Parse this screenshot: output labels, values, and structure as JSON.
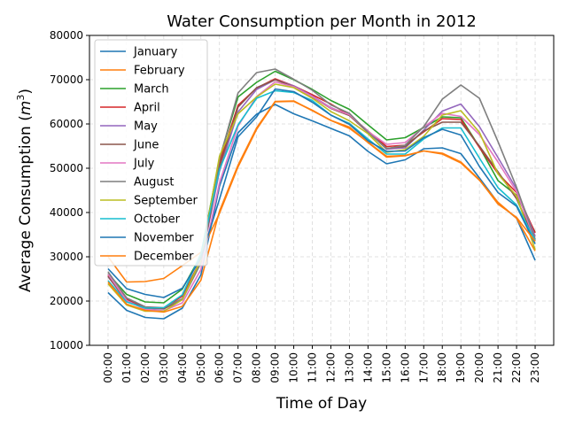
{
  "chart_data": {
    "type": "line",
    "title": "Water Consumption per Month in 2012",
    "xlabel": "Time of Day",
    "ylabel": "Average Consumption (m³)",
    "ylabel_base": "Average Consumption (",
    "ylabel_unit": "m",
    "ylabel_exp": "3",
    "ylabel_close": ")",
    "ylim": [
      10000,
      80000
    ],
    "yticks": [
      10000,
      20000,
      30000,
      40000,
      50000,
      60000,
      70000,
      80000
    ],
    "ytick_labels": [
      "10000",
      "20000",
      "30000",
      "40000",
      "50000",
      "60000",
      "70000",
      "80000"
    ],
    "grid": true,
    "legend_position": "upper-left",
    "x": [
      "00:00",
      "01:00",
      "02:00",
      "03:00",
      "04:00",
      "05:00",
      "06:00",
      "07:00",
      "08:00",
      "09:00",
      "10:00",
      "11:00",
      "12:00",
      "13:00",
      "14:00",
      "15:00",
      "16:00",
      "17:00",
      "18:00",
      "19:00",
      "20:00",
      "21:00",
      "22:00",
      "23:00"
    ],
    "series": [
      {
        "name": "January",
        "color": "#1f77b4",
        "values": [
          21900,
          17900,
          16300,
          16000,
          18400,
          25900,
          45900,
          58000,
          62200,
          64400,
          62300,
          60700,
          59000,
          57300,
          53800,
          51000,
          51900,
          54400,
          54600,
          53300,
          47800,
          42200,
          38700,
          29200
        ]
      },
      {
        "name": "February",
        "color": "#ff7f0e",
        "values": [
          30000,
          24300,
          24400,
          25100,
          28000,
          31000,
          39800,
          50300,
          58800,
          65000,
          65100,
          63100,
          60800,
          59000,
          55900,
          52700,
          52900,
          53900,
          53200,
          51200,
          47300,
          42300,
          38700,
          31300
        ]
      },
      {
        "name": "March",
        "color": "#2ca02c",
        "values": [
          26200,
          21500,
          19800,
          19600,
          22700,
          30300,
          52200,
          66100,
          69400,
          71900,
          70000,
          67800,
          65300,
          63300,
          59800,
          56400,
          56900,
          59200,
          61600,
          61400,
          54800,
          47200,
          43900,
          35500
        ]
      },
      {
        "name": "April",
        "color": "#d62728",
        "values": [
          25800,
          20400,
          18600,
          18400,
          21100,
          29300,
          51300,
          64200,
          68100,
          70200,
          68600,
          66600,
          64500,
          62000,
          58400,
          54900,
          55200,
          58200,
          61200,
          61000,
          54700,
          48800,
          44500,
          35400
        ]
      },
      {
        "name": "May",
        "color": "#9467bd",
        "values": [
          25500,
          20100,
          18300,
          18200,
          20500,
          28600,
          49300,
          62700,
          67800,
          70000,
          68600,
          66300,
          63700,
          62000,
          58400,
          54300,
          54600,
          58600,
          62900,
          64500,
          59400,
          52400,
          45300,
          34600
        ]
      },
      {
        "name": "June",
        "color": "#8c564b",
        "values": [
          25600,
          20000,
          18400,
          18300,
          20300,
          28700,
          50300,
          63800,
          68200,
          70000,
          68400,
          66100,
          63500,
          61900,
          58100,
          54500,
          54900,
          58400,
          60400,
          60400,
          55000,
          49200,
          43100,
          33700
        ]
      },
      {
        "name": "July",
        "color": "#e377c2",
        "values": [
          26100,
          20100,
          18100,
          17800,
          19600,
          27100,
          46700,
          59500,
          66200,
          69500,
          68400,
          66200,
          63600,
          62100,
          58300,
          55400,
          55800,
          59300,
          62400,
          61700,
          57600,
          51400,
          44700,
          33600
        ]
      },
      {
        "name": "August",
        "color": "#7f7f7f",
        "values": [
          26600,
          20700,
          18700,
          18500,
          20500,
          28600,
          52000,
          67000,
          71600,
          72400,
          70100,
          67600,
          64300,
          62400,
          58100,
          54400,
          55200,
          59400,
          65600,
          68800,
          65800,
          56000,
          45700,
          34000
        ]
      },
      {
        "name": "September",
        "color": "#bcbd22",
        "values": [
          23900,
          19100,
          17700,
          17700,
          20300,
          29400,
          52700,
          62300,
          66100,
          69000,
          68200,
          65800,
          62800,
          60700,
          57800,
          53600,
          54200,
          57200,
          62000,
          63000,
          58100,
          48700,
          43700,
          31600
        ]
      },
      {
        "name": "October",
        "color": "#17becf",
        "values": [
          24600,
          19800,
          18400,
          18500,
          21400,
          30700,
          49700,
          59800,
          65800,
          67500,
          67100,
          65300,
          62000,
          60100,
          56600,
          53200,
          53200,
          56600,
          59100,
          59100,
          52300,
          45600,
          41700,
          33700
        ]
      },
      {
        "name": "November",
        "color": "#1f77b4",
        "values": [
          27300,
          22800,
          21500,
          20800,
          22900,
          29600,
          43000,
          57100,
          61600,
          67900,
          67300,
          64900,
          62000,
          59900,
          56200,
          53800,
          53900,
          56900,
          58800,
          57500,
          50400,
          44500,
          41400,
          32900
        ]
      },
      {
        "name": "December",
        "color": "#ff7f0e",
        "values": [
          24300,
          19300,
          17900,
          17500,
          18800,
          24700,
          40300,
          50700,
          59100,
          65100,
          65200,
          63000,
          60800,
          59300,
          55800,
          52500,
          52800,
          53900,
          53400,
          51400,
          47400,
          41900,
          38900,
          33500
        ]
      }
    ]
  }
}
